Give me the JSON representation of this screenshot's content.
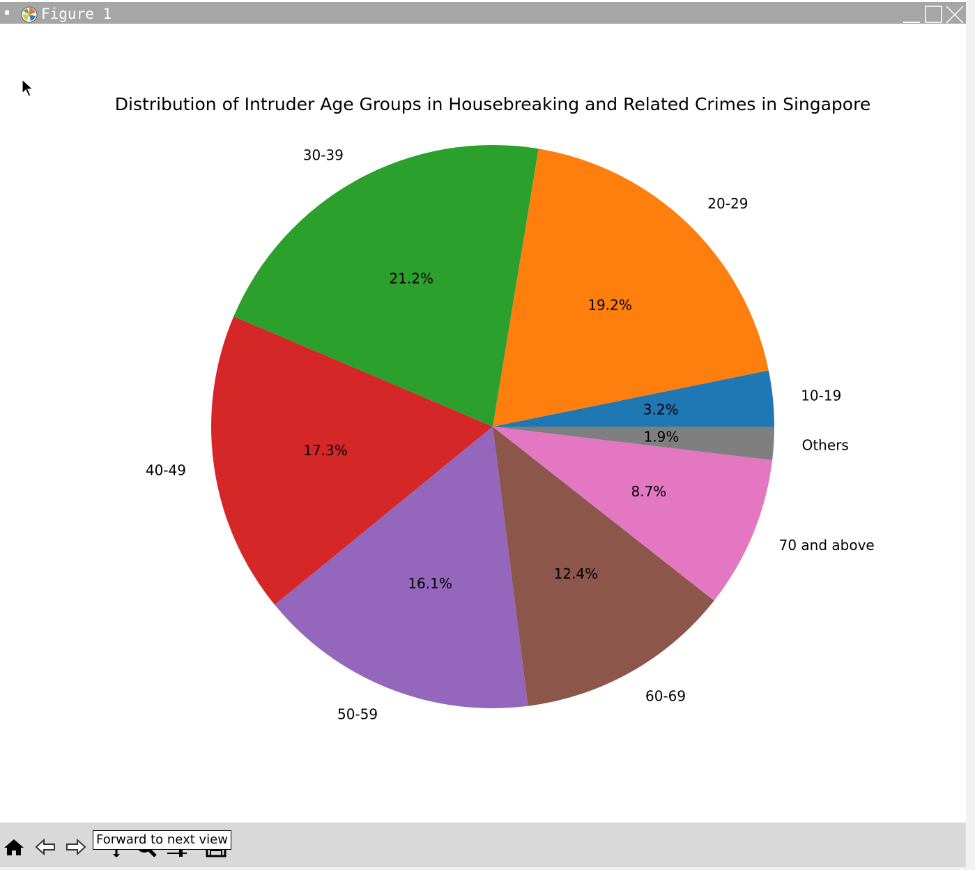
{
  "window": {
    "title": "Figure 1",
    "icons": [
      "app-icon",
      "minimize-icon",
      "maximize-icon",
      "close-icon"
    ]
  },
  "toolbar": {
    "buttons": [
      {
        "name": "home",
        "icon": "home-icon"
      },
      {
        "name": "back",
        "icon": "back-arrow-icon"
      },
      {
        "name": "forward",
        "icon": "forward-arrow-icon"
      },
      {
        "name": "pan",
        "icon": "move-icon"
      },
      {
        "name": "zoom",
        "icon": "zoom-icon"
      },
      {
        "name": "configure",
        "icon": "sliders-icon"
      },
      {
        "name": "save",
        "icon": "save-icon"
      }
    ],
    "tooltip": "Forward to next view"
  },
  "chart_data": {
    "type": "pie",
    "title": "Distribution of Intruder Age Groups in Housebreaking and Related Crimes in Singapore",
    "start_angle": 0,
    "direction": "counterclockwise",
    "slices": [
      {
        "label": "10-19",
        "value": 3.2,
        "pct_label": "3.2%",
        "color": "#1f77b4"
      },
      {
        "label": "20-29",
        "value": 19.2,
        "pct_label": "19.2%",
        "color": "#ff7f0e"
      },
      {
        "label": "30-39",
        "value": 21.2,
        "pct_label": "21.2%",
        "color": "#2ca02c"
      },
      {
        "label": "40-49",
        "value": 17.3,
        "pct_label": "17.3%",
        "color": "#d62728"
      },
      {
        "label": "50-59",
        "value": 16.1,
        "pct_label": "16.1%",
        "color": "#9467bd"
      },
      {
        "label": "60-69",
        "value": 12.4,
        "pct_label": "12.4%",
        "color": "#8c564b"
      },
      {
        "label": "70 and above",
        "value": 8.7,
        "pct_label": "8.7%",
        "color": "#e377c2"
      },
      {
        "label": "Others",
        "value": 1.9,
        "pct_label": "1.9%",
        "color": "#7f7f7f"
      }
    ]
  }
}
